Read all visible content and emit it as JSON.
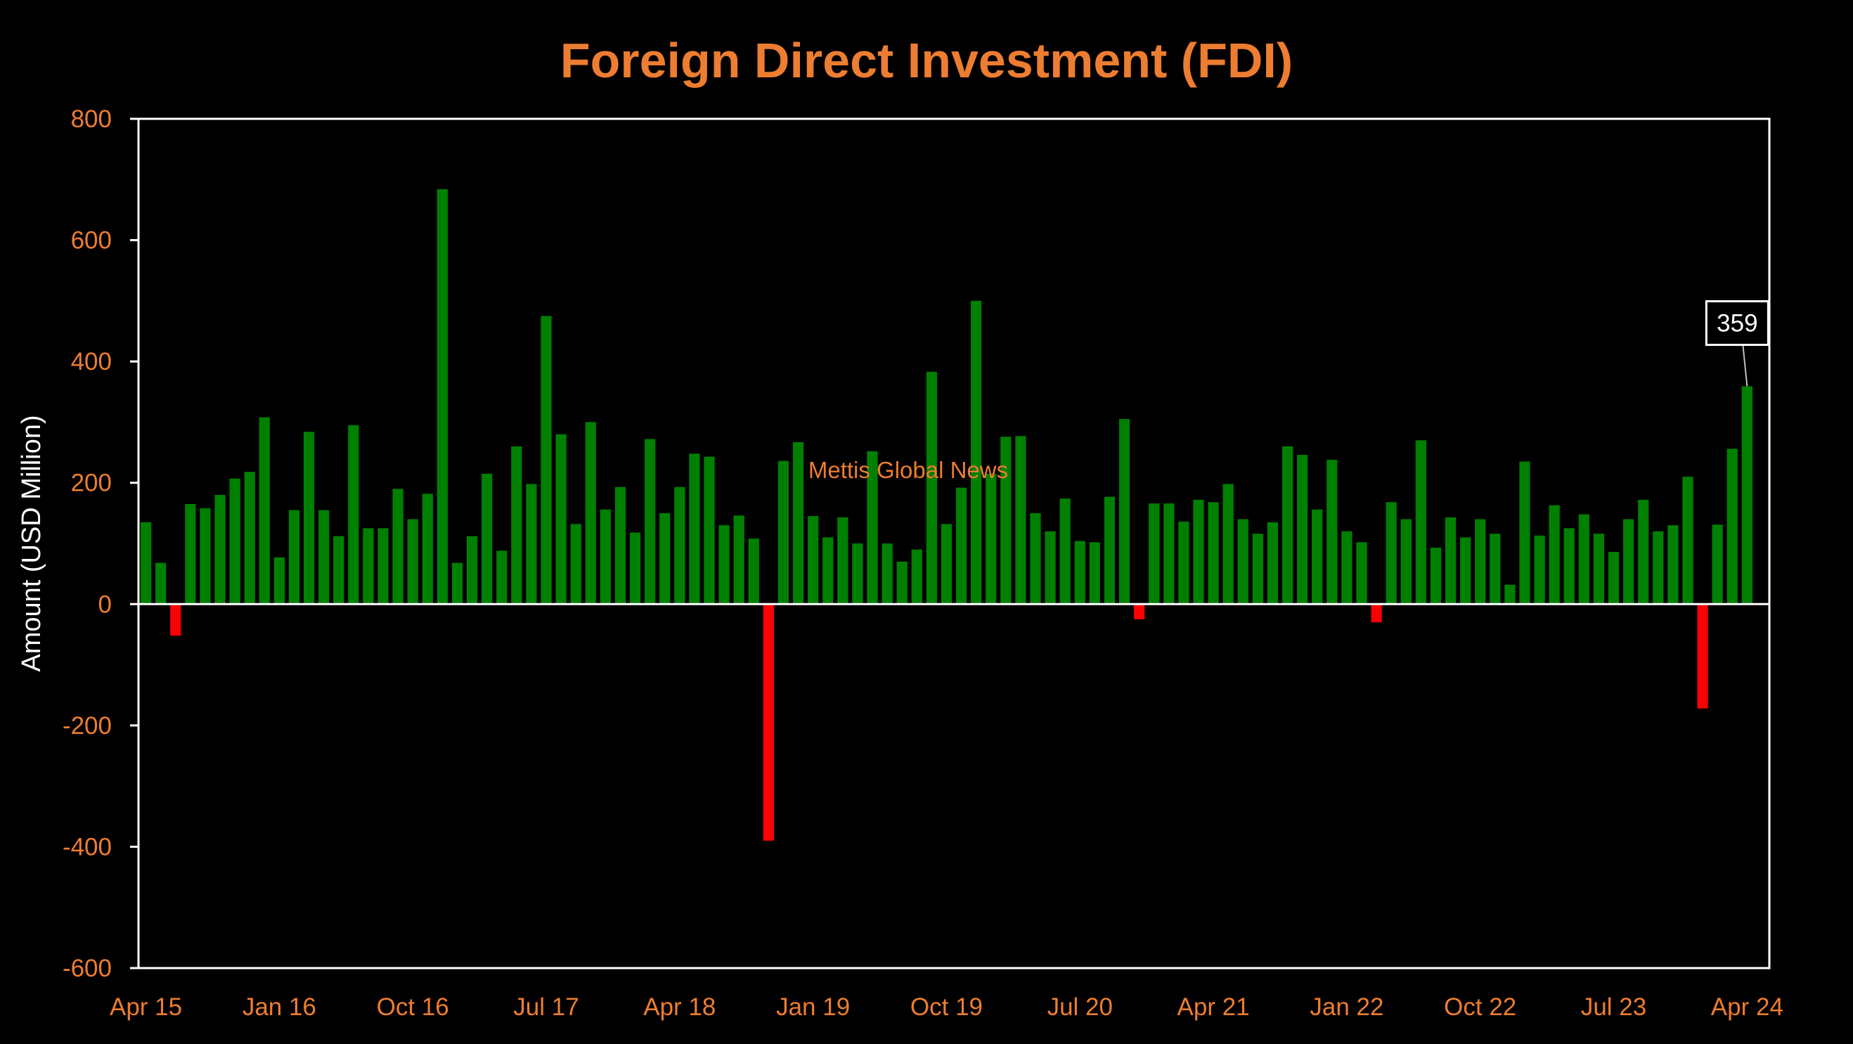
{
  "chart_data": {
    "type": "bar",
    "title": "Foreign Direct Investment (FDI)",
    "ylabel": "Amount (USD Million)",
    "xlabel": "",
    "ylim": [
      -600,
      800
    ],
    "yticks": [
      800,
      600,
      400,
      200,
      0,
      -200,
      -400,
      -600
    ],
    "xtick_labels": [
      "Apr 15",
      "Jan 16",
      "Oct 16",
      "Jul 17",
      "Apr 18",
      "Jan 19",
      "Oct 19",
      "Jul 20",
      "Apr 21",
      "Jan 22",
      "Oct 22",
      "Jul 23",
      "Apr 24"
    ],
    "start_month": "Apr 15",
    "end_month": "Apr 24",
    "positive_color": "#008000",
    "negative_color": "#FF0000",
    "grid": false,
    "watermark": "Mettis Global News",
    "callout": {
      "label": "359",
      "index": 108
    },
    "values": [
      135,
      68,
      -52,
      165,
      158,
      180,
      207,
      218,
      308,
      77,
      155,
      284,
      155,
      112,
      295,
      125,
      125,
      190,
      140,
      182,
      684,
      68,
      112,
      215,
      88,
      260,
      198,
      475,
      280,
      132,
      300,
      156,
      193,
      118,
      272,
      150,
      193,
      248,
      243,
      130,
      146,
      108,
      -390,
      236,
      267,
      145,
      110,
      143,
      100,
      252,
      100,
      70,
      90,
      383,
      132,
      192,
      500,
      215,
      276,
      277,
      150,
      120,
      174,
      104,
      102,
      177,
      305,
      -25,
      166,
      166,
      136,
      172,
      168,
      198,
      140,
      116,
      135,
      260,
      246,
      156,
      238,
      120,
      102,
      -30,
      168,
      140,
      270,
      93,
      143,
      110,
      140,
      116,
      32,
      235,
      113,
      163,
      125,
      148,
      116,
      86,
      140,
      172,
      120,
      130,
      210,
      -172,
      131,
      256,
      359
    ]
  }
}
